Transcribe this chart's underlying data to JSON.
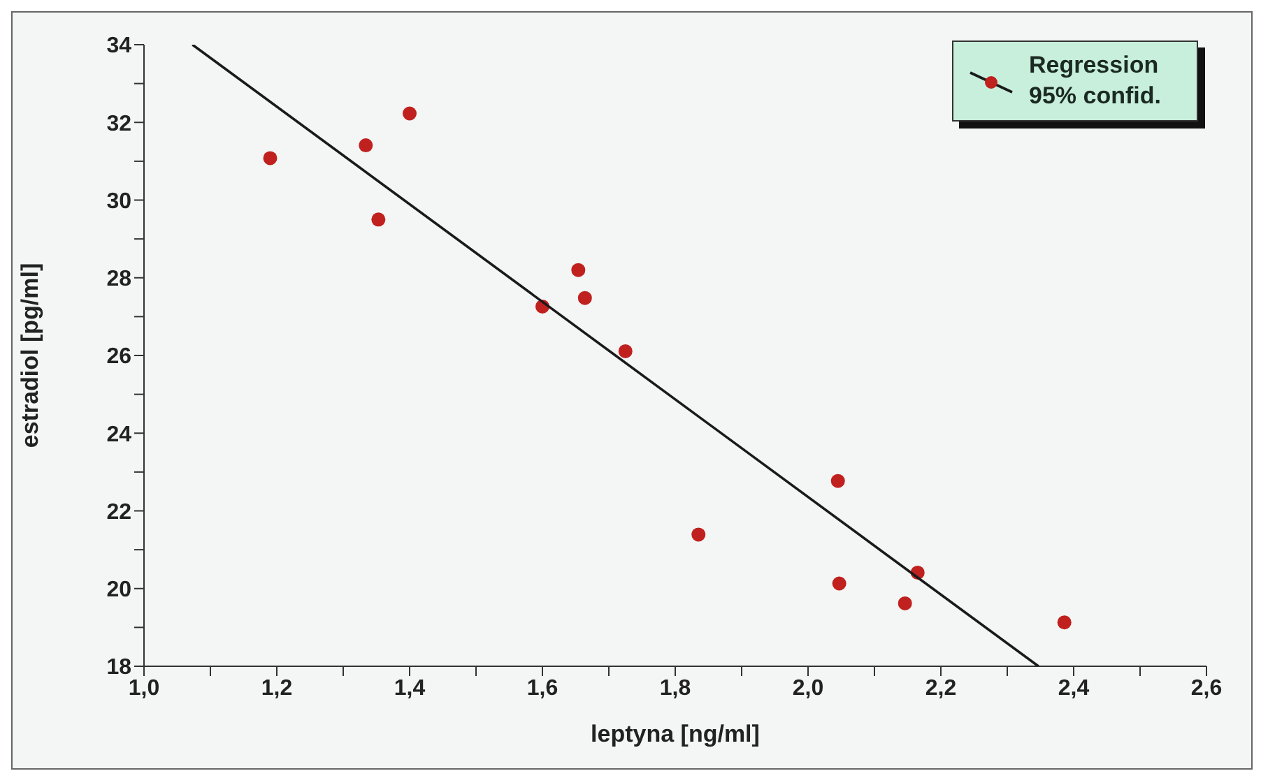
{
  "chart_data": {
    "type": "scatter",
    "xlabel": "leptyna [ng/ml]",
    "ylabel": "estradiol [pg/ml]",
    "xlim": [
      1.0,
      2.6
    ],
    "ylim": [
      18,
      34
    ],
    "xticks": [
      {
        "value": 1.0,
        "label": "1,0"
      },
      {
        "value": 1.1,
        "label": null
      },
      {
        "value": 1.2,
        "label": "1,2"
      },
      {
        "value": 1.3,
        "label": null
      },
      {
        "value": 1.4,
        "label": "1,4"
      },
      {
        "value": 1.5,
        "label": null
      },
      {
        "value": 1.6,
        "label": "1,6"
      },
      {
        "value": 1.7,
        "label": null
      },
      {
        "value": 1.8,
        "label": "1,8"
      },
      {
        "value": 1.9,
        "label": null
      },
      {
        "value": 2.0,
        "label": "2,0"
      },
      {
        "value": 2.1,
        "label": null
      },
      {
        "value": 2.2,
        "label": "2,2"
      },
      {
        "value": 2.3,
        "label": null
      },
      {
        "value": 2.4,
        "label": "2,4"
      },
      {
        "value": 2.5,
        "label": null
      },
      {
        "value": 2.6,
        "label": "2,6"
      }
    ],
    "yticks": [
      18,
      {
        "value": 19,
        "label": null
      },
      20,
      {
        "value": 21,
        "label": null
      },
      22,
      {
        "value": 23,
        "label": null
      },
      24,
      {
        "value": 25,
        "label": null
      },
      26,
      {
        "value": 27,
        "label": null
      },
      28,
      {
        "value": 29,
        "label": null
      },
      30,
      {
        "value": 31,
        "label": null
      },
      32,
      {
        "value": 33,
        "label": null
      },
      34
    ],
    "grid": false,
    "legend": "top right",
    "marker": "circle",
    "series": [
      {
        "type": "scatter",
        "color": "#c0201e",
        "x": [
          1.19,
          1.334,
          1.4,
          1.353,
          1.6,
          1.654,
          1.664,
          1.725,
          1.835,
          2.045,
          2.047,
          2.165,
          2.146,
          2.386
        ],
        "values": [
          31.08,
          31.41,
          32.23,
          29.5,
          27.26,
          28.2,
          27.48,
          26.11,
          21.39,
          22.77,
          20.13,
          20.41,
          19.62,
          19.13
        ]
      },
      {
        "type": "line",
        "name": "Regression 95% confid.",
        "color": "#1a1a1a",
        "marker": "none",
        "x": [
          1.073,
          2.347
        ],
        "values": [
          34,
          18
        ]
      }
    ]
  }
}
